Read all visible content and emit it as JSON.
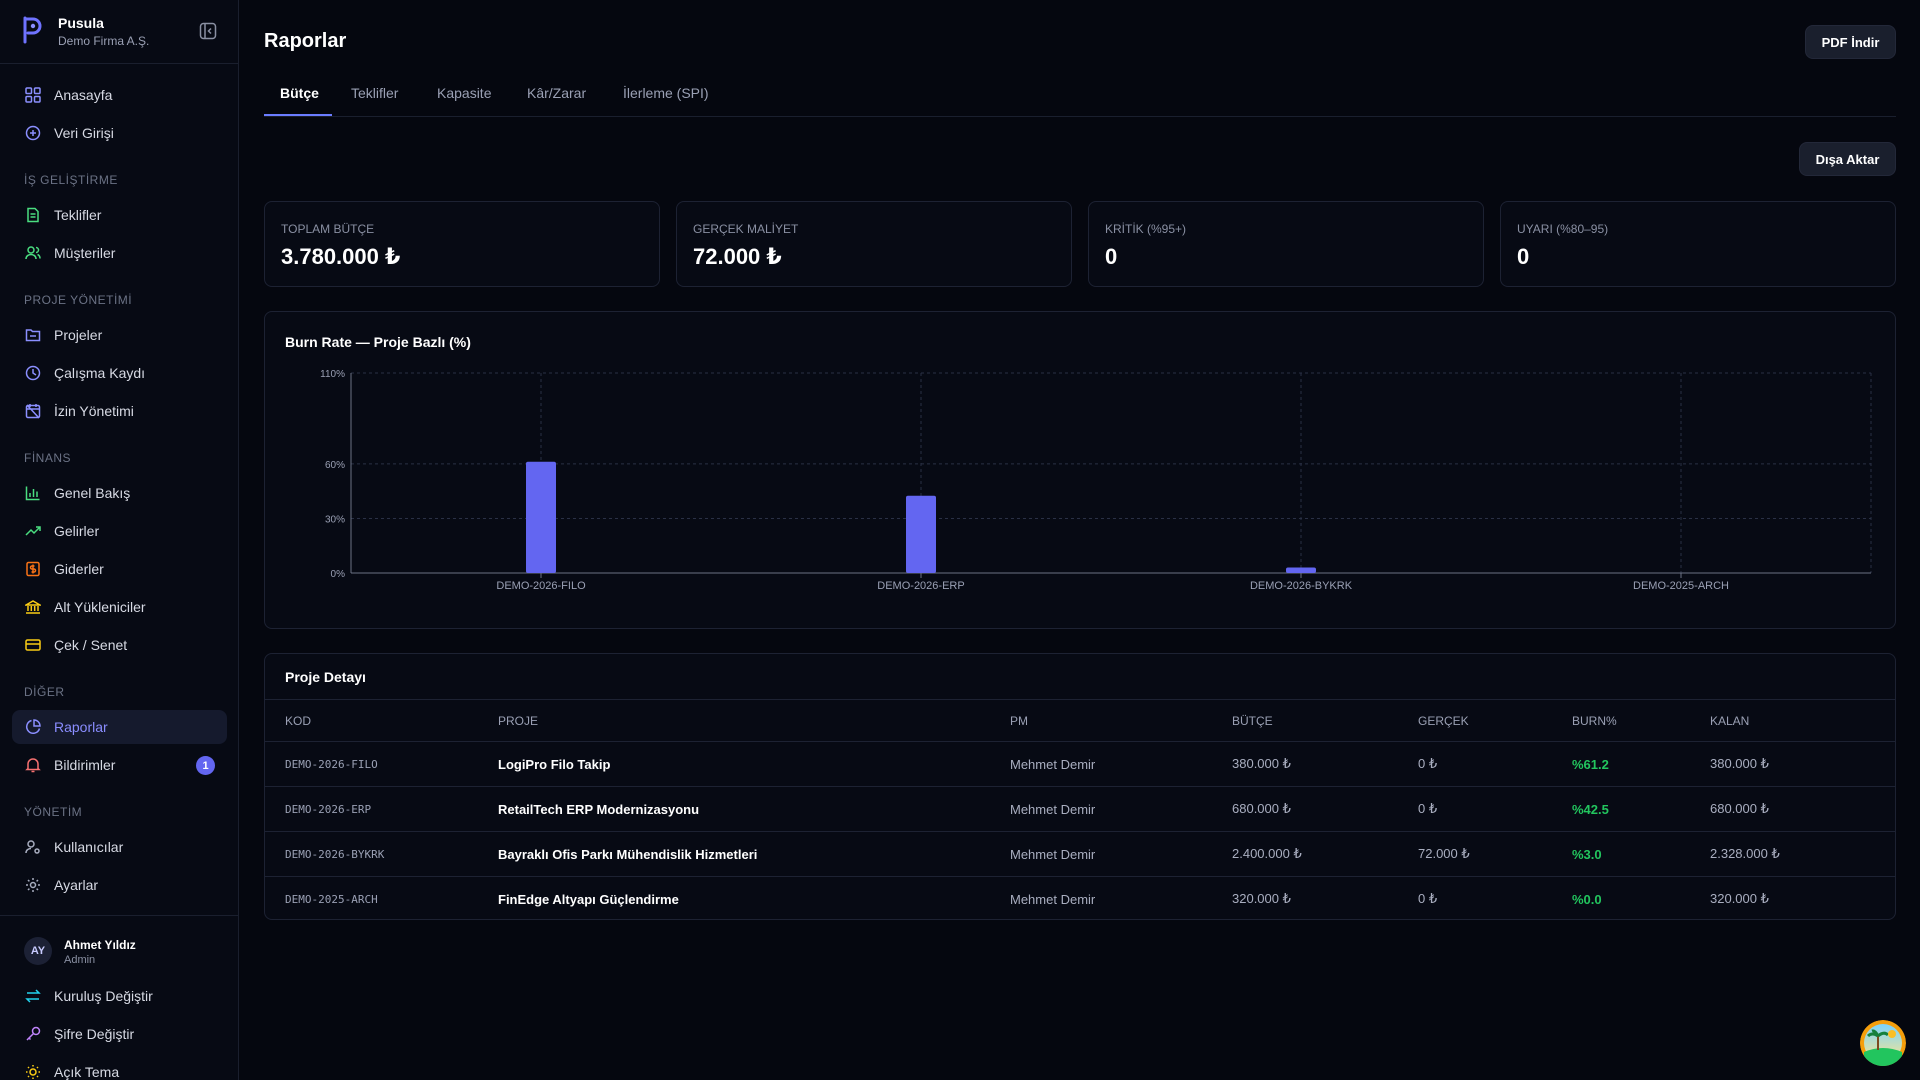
{
  "brand": {
    "name": "Pusula",
    "org": "Demo Firma A.Ş."
  },
  "nav": {
    "top": [
      {
        "label": "Anasayfa",
        "icon": "grid-icon"
      },
      {
        "label": "Veri Girişi",
        "icon": "plus-circle-icon"
      }
    ],
    "sections": [
      {
        "title": "İŞ GELİŞTİRME",
        "items": [
          {
            "label": "Teklifler",
            "icon": "document-icon"
          },
          {
            "label": "Müşteriler",
            "icon": "users-icon"
          }
        ]
      },
      {
        "title": "PROJE YÖNETİMİ",
        "items": [
          {
            "label": "Projeler",
            "icon": "folder-icon"
          },
          {
            "label": "Çalışma Kaydı",
            "icon": "clock-icon"
          },
          {
            "label": "İzin Yönetimi",
            "icon": "calendar-off-icon"
          }
        ]
      },
      {
        "title": "FİNANS",
        "items": [
          {
            "label": "Genel Bakış",
            "icon": "bar-chart-icon"
          },
          {
            "label": "Gelirler",
            "icon": "trending-up-icon"
          },
          {
            "label": "Giderler",
            "icon": "receipt-icon"
          },
          {
            "label": "Alt Yükleniciler",
            "icon": "bank-icon"
          },
          {
            "label": "Çek / Senet",
            "icon": "card-icon"
          }
        ]
      },
      {
        "title": "DİĞER",
        "items": [
          {
            "label": "Raporlar",
            "icon": "pie-chart-icon"
          },
          {
            "label": "Bildirimler",
            "icon": "bell-icon",
            "badge": "1"
          }
        ]
      },
      {
        "title": "YÖNETİM",
        "items": [
          {
            "label": "Kullanıcılar",
            "icon": "user-gear-icon"
          },
          {
            "label": "Ayarlar",
            "icon": "gear-icon"
          }
        ]
      }
    ]
  },
  "user": {
    "initials": "AY",
    "name": "Ahmet Yıldız",
    "role": "Admin",
    "actions": [
      {
        "label": "Kuruluş Değiştir",
        "icon": "swap-icon"
      },
      {
        "label": "Şifre Değiştir",
        "icon": "key-icon"
      },
      {
        "label": "Açık Tema",
        "icon": "sun-icon"
      }
    ]
  },
  "header": {
    "title": "Raporlar",
    "pdf_button": "PDF İndir"
  },
  "tabs": [
    "Bütçe",
    "Teklifler",
    "Kapasite",
    "Kâr/Zarar",
    "İlerleme (SPI)"
  ],
  "export_button": "Dışa Aktar",
  "stats": [
    {
      "label": "TOPLAM BÜTÇE",
      "value": "3.780.000 ₺"
    },
    {
      "label": "GERÇEK MALİYET",
      "value": "72.000 ₺"
    },
    {
      "label": "KRİTİK (%95+)",
      "value": "0"
    },
    {
      "label": "UYARI (%80–95)",
      "value": "0"
    }
  ],
  "chart_data": {
    "type": "bar",
    "title": "Burn Rate — Proje Bazlı (%)",
    "categories": [
      "DEMO-2026-FILO",
      "DEMO-2026-ERP",
      "DEMO-2026-BYKRK",
      "DEMO-2025-ARCH"
    ],
    "values": [
      61.2,
      42.5,
      3.0,
      0.0
    ],
    "y_ticks": [
      "0%",
      "30%",
      "60%",
      "110%"
    ],
    "y_tick_values": [
      0,
      30,
      60,
      110
    ],
    "ylim": [
      0,
      110
    ],
    "grid": true,
    "bar_color": "#6366f1"
  },
  "table": {
    "title": "Proje Detayı",
    "columns": [
      "KOD",
      "PROJE",
      "PM",
      "BÜTÇE",
      "GERÇEK",
      "BURN%",
      "KALAN"
    ],
    "rows": [
      [
        "DEMO-2026-FILO",
        "LogiPro Filo Takip",
        "Mehmet Demir",
        "380.000 ₺",
        "0 ₺",
        "%61.2",
        "380.000 ₺"
      ],
      [
        "DEMO-2026-ERP",
        "RetailTech ERP Modernizasyonu",
        "Mehmet Demir",
        "680.000 ₺",
        "0 ₺",
        "%42.5",
        "680.000 ₺"
      ],
      [
        "DEMO-2026-BYKRK",
        "Bayraklı Ofis Parkı Mühendislik Hizmetleri",
        "Mehmet Demir",
        "2.400.000 ₺",
        "72.000 ₺",
        "%3.0",
        "2.328.000 ₺"
      ],
      [
        "DEMO-2025-ARCH",
        "FinEdge Altyapı Güçlendirme",
        "Mehmet Demir",
        "320.000 ₺",
        "0 ₺",
        "%0.0",
        "320.000 ₺"
      ]
    ]
  }
}
